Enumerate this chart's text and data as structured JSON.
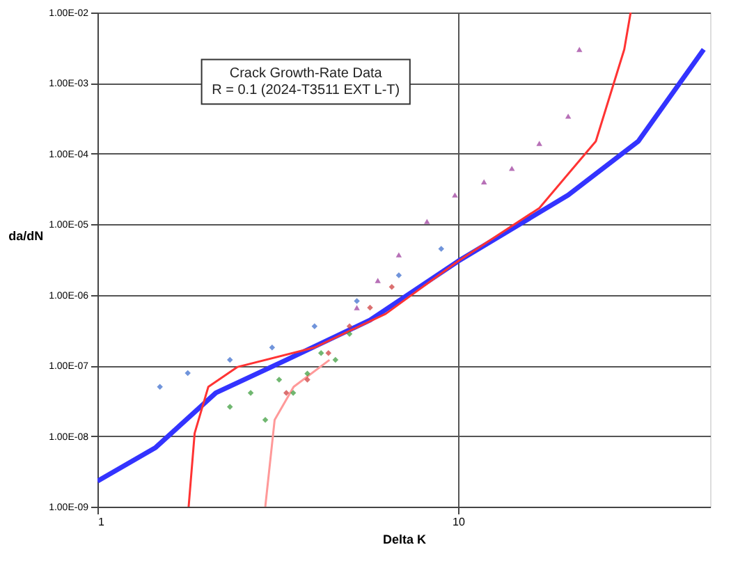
{
  "chart_data": {
    "type": "line",
    "annotations": [
      "Crack Growth-Rate Data",
      "R = 0.1 (2024-T3511 EXT L-T)"
    ],
    "xlabel": "Delta K",
    "ylabel": "da/dN",
    "log": "xy",
    "grid": true,
    "xlim": [
      1,
      50
    ],
    "xticks": [
      1,
      10
    ],
    "ylim": [
      1e-09,
      0.01
    ],
    "yticks": [
      {
        "value": 1e-09,
        "label": "1.00E-09"
      },
      {
        "value": 1e-08,
        "label": "1.00E-08"
      },
      {
        "value": 1e-07,
        "label": "1.00E-07"
      },
      {
        "value": 1e-06,
        "label": "1.00E-06"
      },
      {
        "value": 1e-05,
        "label": "1.00E-05"
      },
      {
        "value": 0.0001,
        "label": "1.00E-04"
      },
      {
        "value": 0.001,
        "label": "1.00E-03"
      },
      {
        "value": 0.01,
        "label": "1.00E-02"
      }
    ],
    "series": [
      {
        "type": "line",
        "color": "#3333ff",
        "marker": "none",
        "x": [
          1,
          1.45,
          2.13,
          3.34,
          5.7,
          10,
          20.2,
          31.6,
          48
        ],
        "values": [
          2.3e-09,
          6.9e-09,
          4.1e-08,
          1.2e-07,
          4.4e-07,
          3e-06,
          2.6e-05,
          0.00015,
          0.003
        ]
      },
      {
        "type": "line",
        "color": "#ff3333",
        "marker": "none",
        "x": [
          1.79,
          1.86,
          2.03,
          2.44,
          4.0,
          6.3,
          10,
          16.8,
          24.1,
          28.9,
          30.1
        ],
        "values": [
          1e-09,
          1.1e-08,
          5e-08,
          9.5e-08,
          1.8e-07,
          5.4e-07,
          3e-06,
          1.7e-05,
          0.00015,
          0.003,
          0.01
        ]
      },
      {
        "type": "line",
        "color": "#ff9999",
        "marker": "none",
        "x": [
          2.92,
          3.1,
          3.5,
          4.4
        ],
        "values": [
          1e-09,
          1.7e-08,
          5e-08,
          1.2e-07
        ]
      },
      {
        "type": "scatter",
        "color": "#339933",
        "marker": "diamond",
        "x": [
          2.33,
          2.66,
          2.92,
          3.19,
          3.49,
          3.82,
          4.17,
          4.57,
          5.0
        ],
        "values": [
          2.6e-08,
          4.1e-08,
          1.7e-08,
          6.3e-08,
          4.1e-08,
          7.7e-08,
          1.5e-07,
          1.2e-07,
          2.8e-07
        ]
      },
      {
        "type": "scatter",
        "color": "#993399",
        "marker": "triangle",
        "x": [
          5.24,
          5.99,
          6.85,
          8.2,
          9.8,
          11.8,
          14.1,
          16.8,
          20.2,
          21.7
        ],
        "values": [
          6.6e-07,
          1.6e-06,
          3.7e-06,
          1.1e-05,
          2.6e-05,
          4e-05,
          6.2e-05,
          0.00014,
          0.00034,
          0.003
        ]
      },
      {
        "type": "scatter",
        "color": "#cc3333",
        "marker": "diamond",
        "x": [
          3.34,
          3.82,
          4.37,
          5.0,
          5.7,
          6.55
        ],
        "values": [
          4.1e-08,
          6.3e-08,
          1.5e-07,
          3.6e-07,
          6.6e-07,
          1.3e-06
        ]
      },
      {
        "type": "scatter",
        "color": "#3366cc",
        "marker": "diamond",
        "x": [
          1.49,
          1.78,
          2.33,
          3.05,
          4.0,
          5.24,
          6.85,
          8.98
        ],
        "values": [
          5e-08,
          7.8e-08,
          1.2e-07,
          1.8e-07,
          3.6e-07,
          8.2e-07,
          1.9e-06,
          4.5e-06
        ]
      }
    ]
  }
}
